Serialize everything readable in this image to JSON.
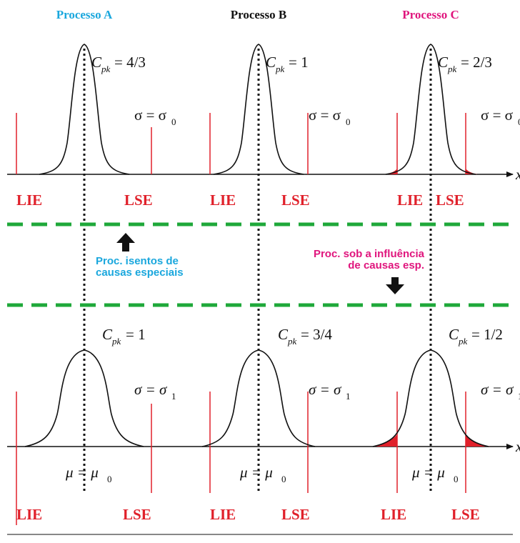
{
  "colors": {
    "blue": "#1aa7dd",
    "magenta": "#e0157d",
    "red": "#e0202a",
    "green": "#1fa83a",
    "black": "#111111"
  },
  "headers": {
    "a": "Processo A",
    "b": "Processo B",
    "c": "Processo C"
  },
  "limits": {
    "lower": "LIE",
    "upper": "LSE"
  },
  "axis_label": "x",
  "cpk": {
    "symbol": "C",
    "sub": "pk",
    "top": [
      "= 4/3",
      "= 1",
      "= 2/3"
    ],
    "bottom": [
      "= 1",
      "= 3/4",
      "= 1/2"
    ]
  },
  "sigma": {
    "symbol": "σ = σ",
    "sub_top": "0",
    "sub_bottom": "1"
  },
  "mu": {
    "symbol": "μ = μ",
    "sub": "0"
  },
  "notes": {
    "left_line1": "Proc. isentos de",
    "left_line2": "causas especiais",
    "right_line1": "Proc. sob a influência",
    "right_line2": "de causas esp."
  },
  "icons": [
    "arrow-up-icon",
    "arrow-down-icon"
  ]
}
